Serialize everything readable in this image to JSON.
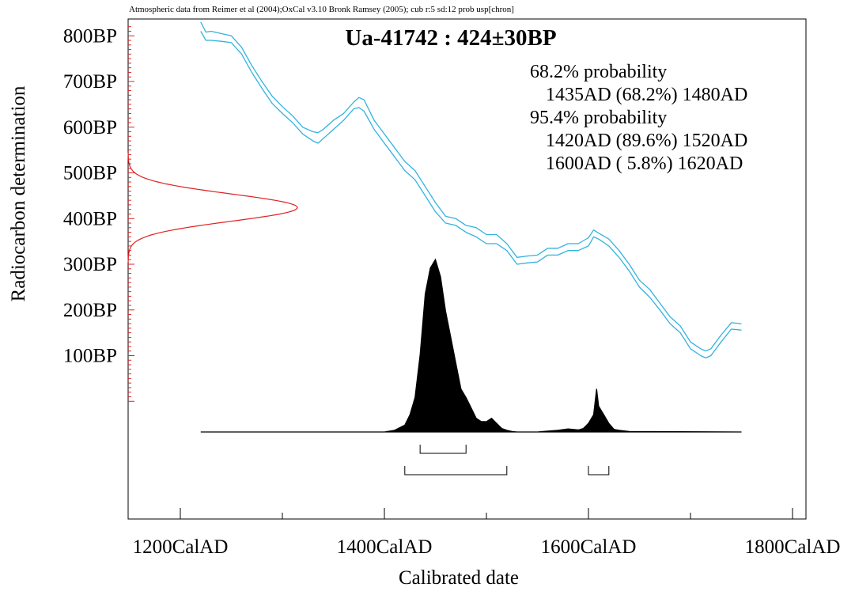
{
  "chart_data": {
    "type": "area",
    "header": "Atmospheric data from Reimer et al (2004);OxCal v3.10 Bronk Ramsey (2005); cub r:5 sd:12 prob usp[chron]",
    "title": "Ua-41742 : 424±30BP",
    "xlabel": "Calibrated date",
    "ylabel": "Radiocarbon determination",
    "xlim": [
      1150,
      1800
    ],
    "ylim": [
      -100,
      830
    ],
    "x_ticks": [
      {
        "value": 1200,
        "label": "1200CalAD"
      },
      {
        "value": 1400,
        "label": "1400CalAD"
      },
      {
        "value": 1600,
        "label": "1600CalAD"
      },
      {
        "value": 1800,
        "label": "1800CalAD"
      }
    ],
    "x_minor_ticks": [
      1300,
      1500,
      1700
    ],
    "y_ticks": [
      {
        "value": 100,
        "label": "100BP"
      },
      {
        "value": 200,
        "label": "200BP"
      },
      {
        "value": 300,
        "label": "300BP"
      },
      {
        "value": 400,
        "label": "400BP"
      },
      {
        "value": 500,
        "label": "500BP"
      },
      {
        "value": 600,
        "label": "600BP"
      },
      {
        "value": 700,
        "label": "700BP"
      },
      {
        "value": 800,
        "label": "800BP"
      }
    ],
    "y_minor_step": 10,
    "annotations": [
      {
        "text": "68.2% probability",
        "indent": false
      },
      {
        "text": "1435AD (68.2%) 1480AD",
        "indent": true
      },
      {
        "text": "95.4% probability",
        "indent": false
      },
      {
        "text": "1420AD (89.6%) 1520AD",
        "indent": true
      },
      {
        "text": "1600AD ( 5.8%) 1620AD",
        "indent": true
      }
    ],
    "ranges": [
      {
        "level": "68.2%",
        "intervals": [
          [
            1435,
            1480
          ]
        ]
      },
      {
        "level": "95.4%",
        "intervals": [
          [
            1420,
            1520
          ],
          [
            1600,
            1620
          ]
        ]
      }
    ],
    "radiocarbon": {
      "mean": 424,
      "sd": 30
    },
    "calibration_curve": {
      "x": [
        1220,
        1225,
        1230,
        1240,
        1250,
        1260,
        1270,
        1280,
        1290,
        1300,
        1310,
        1320,
        1330,
        1335,
        1340,
        1350,
        1360,
        1370,
        1375,
        1380,
        1390,
        1400,
        1410,
        1420,
        1430,
        1440,
        1450,
        1460,
        1470,
        1480,
        1490,
        1500,
        1510,
        1520,
        1530,
        1540,
        1550,
        1560,
        1570,
        1580,
        1590,
        1600,
        1605,
        1610,
        1620,
        1630,
        1640,
        1650,
        1660,
        1670,
        1680,
        1690,
        1700,
        1710,
        1715,
        1720,
        1730,
        1740,
        1750
      ],
      "upper": [
        830,
        808,
        810,
        805,
        800,
        775,
        735,
        700,
        668,
        645,
        625,
        600,
        590,
        588,
        595,
        615,
        630,
        655,
        665,
        660,
        615,
        585,
        555,
        525,
        505,
        470,
        435,
        405,
        400,
        385,
        380,
        365,
        365,
        345,
        315,
        318,
        320,
        335,
        335,
        345,
        345,
        358,
        375,
        368,
        355,
        330,
        300,
        265,
        245,
        215,
        185,
        165,
        130,
        115,
        110,
        115,
        145,
        172,
        170
      ],
      "lower": [
        810,
        790,
        790,
        788,
        785,
        760,
        720,
        685,
        652,
        630,
        610,
        585,
        570,
        565,
        575,
        595,
        615,
        640,
        643,
        635,
        595,
        565,
        535,
        505,
        485,
        450,
        415,
        390,
        385,
        370,
        360,
        345,
        345,
        330,
        300,
        303,
        305,
        320,
        320,
        330,
        330,
        340,
        360,
        355,
        340,
        315,
        285,
        250,
        228,
        200,
        170,
        150,
        115,
        100,
        95,
        100,
        130,
        158,
        156
      ]
    },
    "probability_distribution": {
      "x": [
        1220,
        1350,
        1400,
        1410,
        1420,
        1425,
        1430,
        1435,
        1440,
        1445,
        1450,
        1455,
        1460,
        1465,
        1470,
        1475,
        1480,
        1485,
        1490,
        1495,
        1500,
        1505,
        1510,
        1515,
        1520,
        1525,
        1530,
        1540,
        1550,
        1560,
        1570,
        1580,
        1590,
        1595,
        1600,
        1605,
        1608,
        1610,
        1615,
        1620,
        1625,
        1630,
        1640,
        1750
      ],
      "density": [
        0,
        0,
        0,
        1,
        4,
        10,
        20,
        45,
        80,
        95,
        100,
        90,
        70,
        55,
        40,
        25,
        20,
        14,
        8,
        6,
        6,
        8,
        5,
        2,
        1,
        0.3,
        0,
        0,
        0,
        0.5,
        1,
        1.8,
        1.2,
        2,
        5,
        10,
        25,
        15,
        10,
        5,
        1.5,
        1,
        0.3,
        0
      ]
    }
  }
}
